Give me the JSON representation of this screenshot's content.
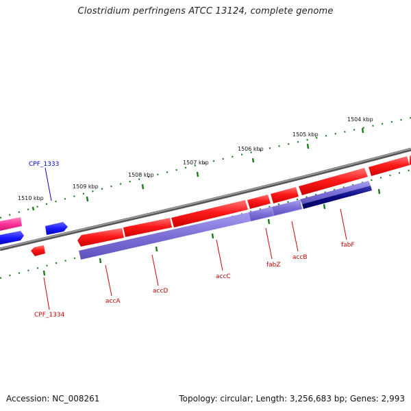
{
  "map": {
    "title": "Clostridium perfringens ATCC 13124, complete genome",
    "accession": "Accession: NC_008261",
    "stats": "Topology: circular; Length: 3,256,683 bp; Genes: 2,993"
  },
  "colors": {
    "backbone": "#7a7a7a",
    "gene_forward": "#ff0000",
    "gene_reverse_light": "#7b6fd6",
    "gene_reverse_dark": "#0a0a80",
    "gene_blue": "#1a1aff",
    "gene_pink": "#ff3399",
    "tick": "#1a7a1a",
    "label_red": "#cc0000",
    "label_blue": "#0000cc"
  },
  "scale_labels": [
    "1510 kbp",
    "1509 kbp",
    "1508 kbp",
    "1507 kbp",
    "1506 kbp",
    "1505 kbp",
    "1504 kbp"
  ],
  "gene_labels": [
    {
      "name": "CPF_1333",
      "color": "blue"
    },
    {
      "name": "CPF_1334",
      "color": "red"
    },
    {
      "name": "accA",
      "color": "red"
    },
    {
      "name": "accD",
      "color": "red"
    },
    {
      "name": "accC",
      "color": "red"
    },
    {
      "name": "fabZ",
      "color": "red"
    },
    {
      "name": "accB",
      "color": "red"
    },
    {
      "name": "fabF",
      "color": "red"
    }
  ]
}
